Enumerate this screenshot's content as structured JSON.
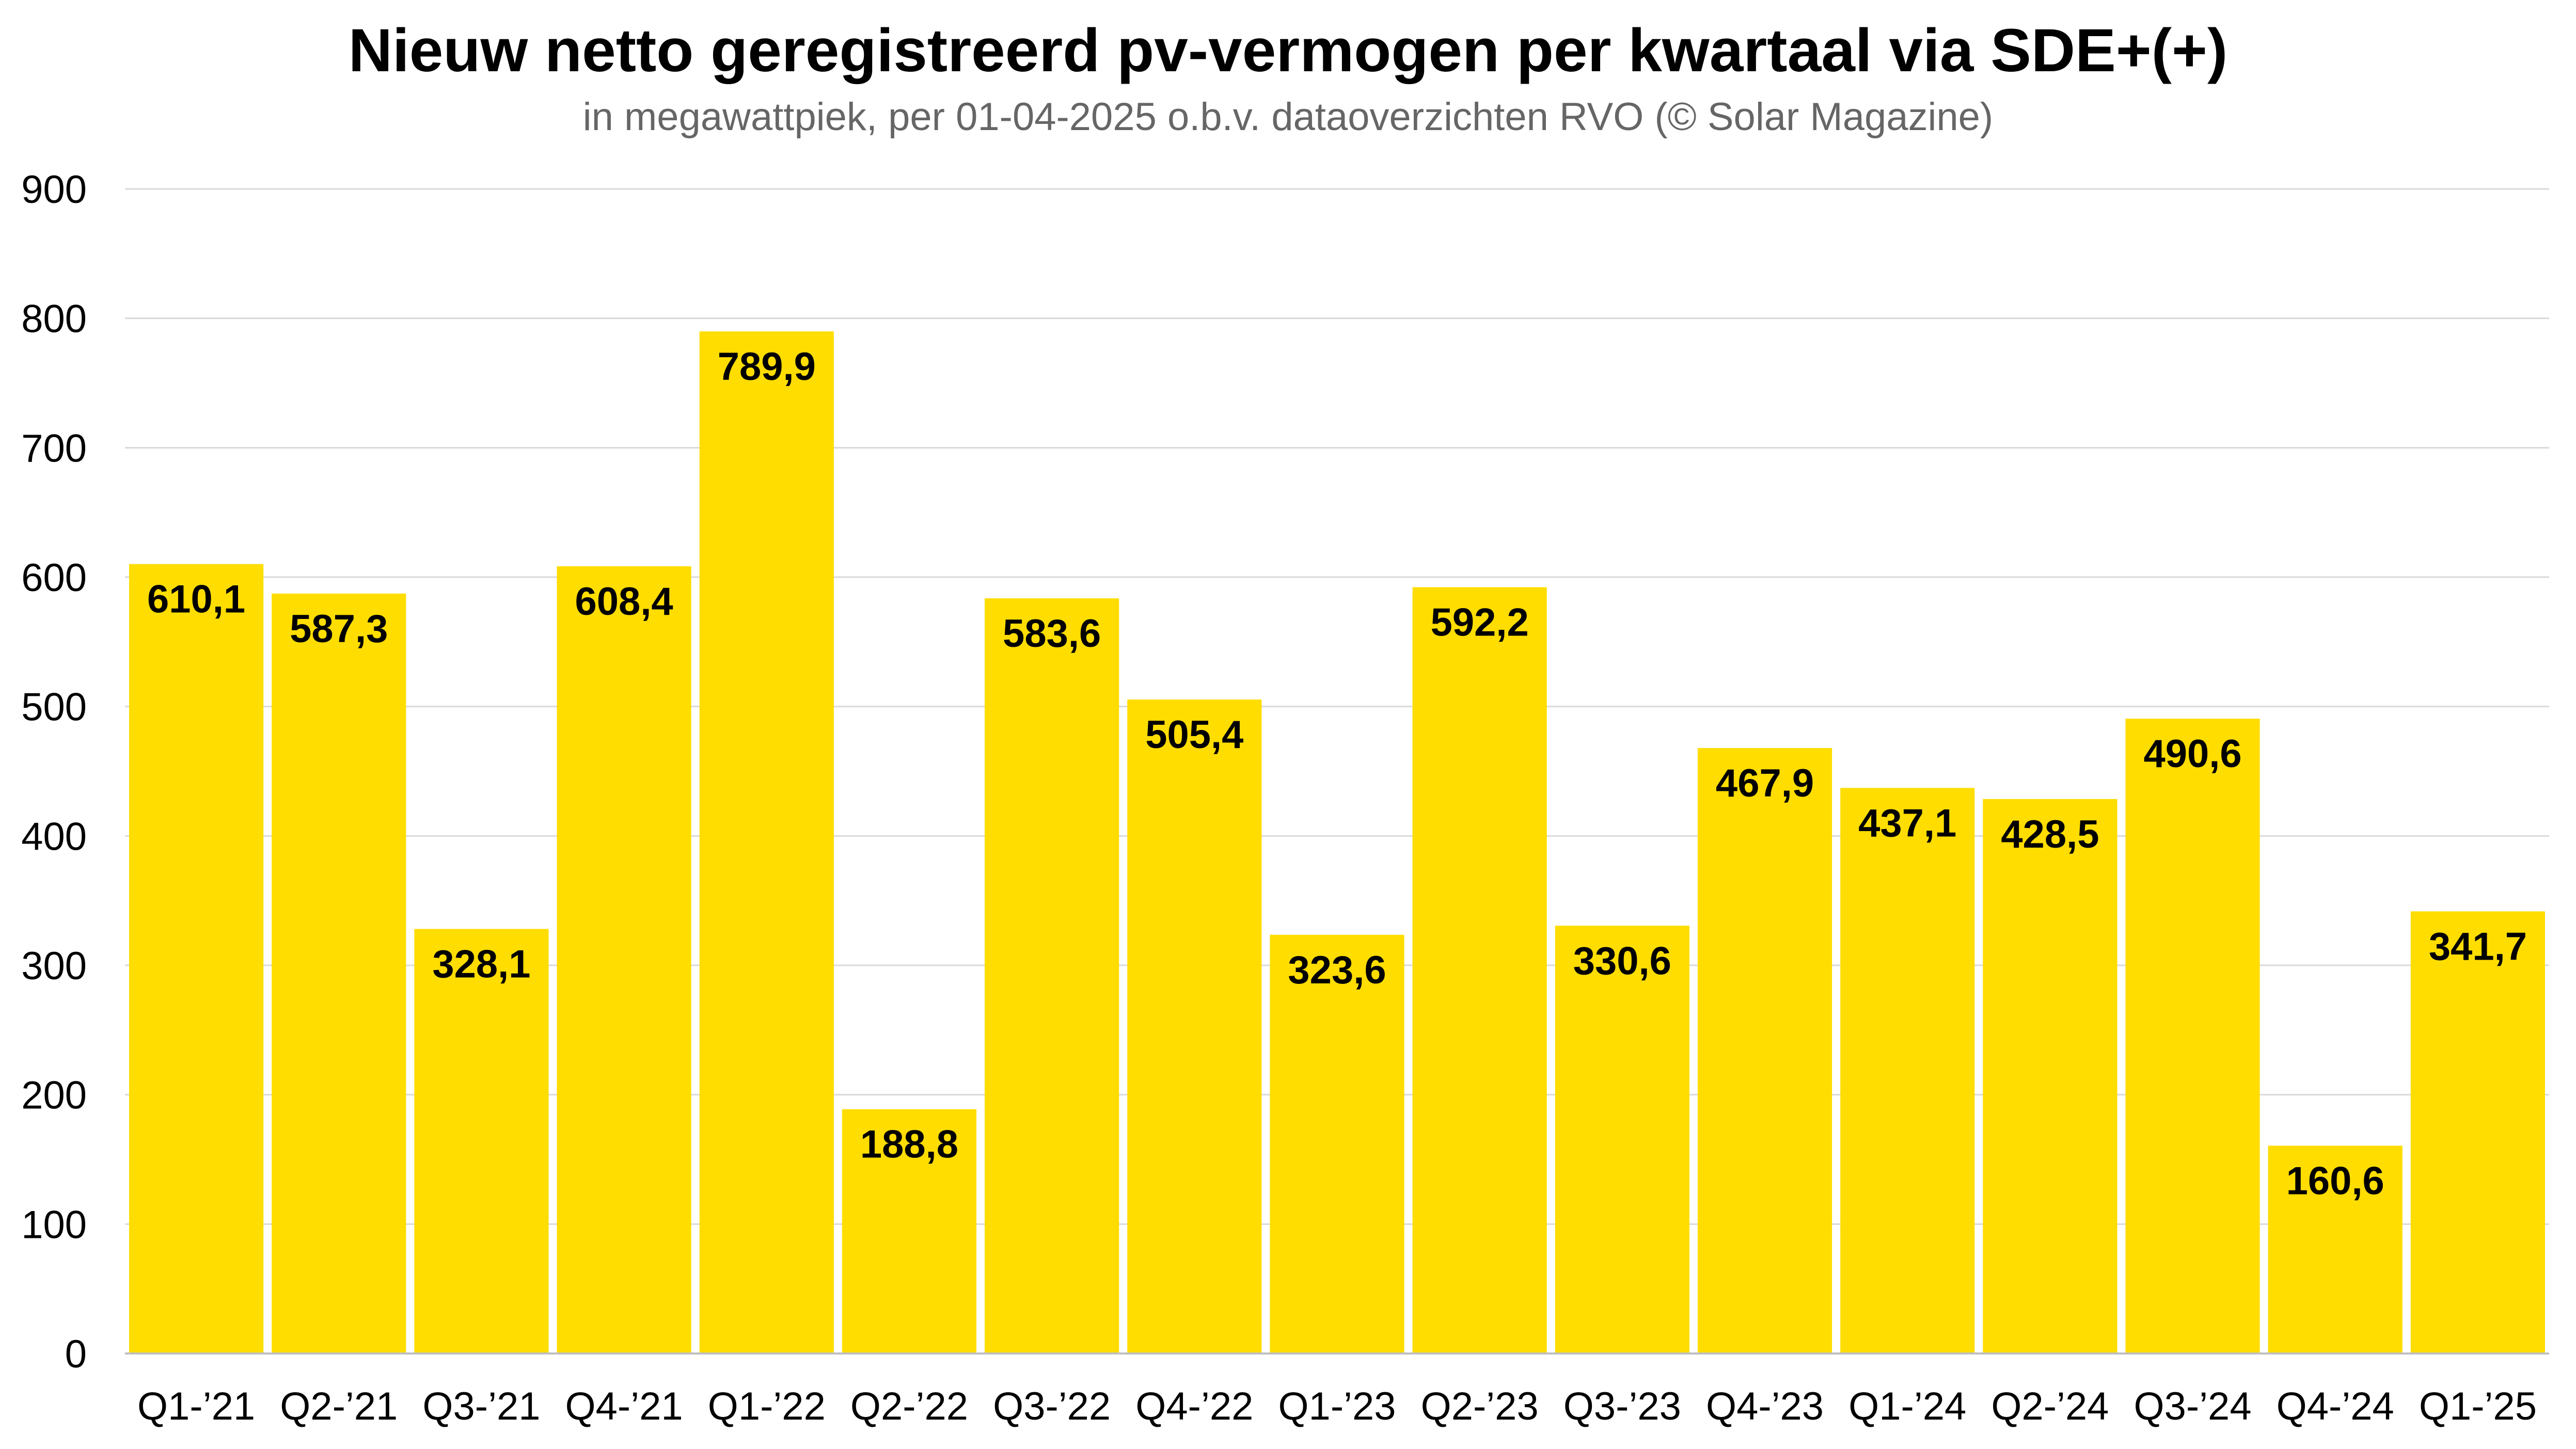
{
  "chart_data": {
    "type": "bar",
    "title": "Nieuw netto geregistreerd pv-vermogen per kwartaal via SDE+(+)",
    "subtitle": "in megawattpiek, per 01-04-2025 o.b.v. dataoverzichten RVO (© Solar Magazine)",
    "categories": [
      "Q1-’21",
      "Q2-’21",
      "Q3-’21",
      "Q4-’21",
      "Q1-’22",
      "Q2-’22",
      "Q3-’22",
      "Q4-’22",
      "Q1-’23",
      "Q2-’23",
      "Q3-’23",
      "Q4-’23",
      "Q1-’24",
      "Q2-’24",
      "Q3-’24",
      "Q4-’24",
      "Q1-’25"
    ],
    "values": [
      610.1,
      587.3,
      328.1,
      608.4,
      789.9,
      188.8,
      583.6,
      505.4,
      323.6,
      592.2,
      330.6,
      467.9,
      437.1,
      428.5,
      490.6,
      160.6,
      341.7
    ],
    "value_labels": [
      "610,1",
      "587,3",
      "328,1",
      "608,4",
      "789,9",
      "188,8",
      "583,6",
      "505,4",
      "323,6",
      "592,2",
      "330,6",
      "467,9",
      "437,1",
      "428,5",
      "490,6",
      "160,6",
      "341,7"
    ],
    "y_ticks": [
      "0",
      "100",
      "200",
      "300",
      "400",
      "500",
      "600",
      "700",
      "800",
      "900"
    ],
    "ylim": [
      0,
      900
    ],
    "xlabel": "",
    "ylabel": "",
    "grid": true,
    "legend": "none",
    "bar_color": "#FFDD00"
  }
}
